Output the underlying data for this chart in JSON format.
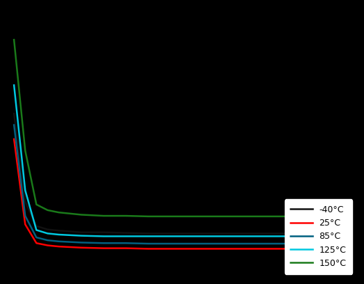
{
  "background_color": "#000000",
  "plot_area_color": "#000000",
  "legend_labels": [
    "-40°C",
    "25°C",
    "85°C",
    "125°C",
    "150°C"
  ],
  "line_colors": [
    "#111111",
    "#ff0000",
    "#006080",
    "#00c8e0",
    "#1a7a1a"
  ],
  "line_widths": [
    1.8,
    1.8,
    1.8,
    1.8,
    1.8
  ],
  "x": [
    3.0,
    3.5,
    4.0,
    4.5,
    5.0,
    6.0,
    7.0,
    8.0,
    9.0,
    10.0,
    11.0,
    12.0,
    13.0,
    14.0,
    15.0,
    16.0,
    17.0,
    18.0
  ],
  "y_m40": [
    460,
    305,
    262,
    256,
    254,
    251,
    251,
    250,
    249,
    249,
    249,
    249,
    249,
    249,
    249,
    249,
    249,
    249
  ],
  "y_25": [
    415,
    265,
    232,
    228,
    226,
    224,
    223,
    223,
    222,
    222,
    222,
    222,
    222,
    222,
    222,
    222,
    222,
    222
  ],
  "y_85": [
    440,
    280,
    242,
    237,
    235,
    233,
    232,
    232,
    231,
    231,
    231,
    231,
    231,
    231,
    231,
    231,
    231,
    231
  ],
  "y_125": [
    510,
    325,
    255,
    249,
    247,
    245,
    244,
    244,
    244,
    244,
    244,
    244,
    244,
    244,
    244,
    244,
    244,
    244
  ],
  "y_150": [
    590,
    395,
    300,
    290,
    286,
    282,
    280,
    280,
    279,
    279,
    279,
    279,
    279,
    279,
    279,
    279,
    279,
    279
  ],
  "xlim": [
    2.7,
    18.3
  ],
  "ylim": [
    170,
    650
  ],
  "figsize": [
    5.24,
    4.08
  ],
  "dpi": 100,
  "legend_fontsize": 9
}
